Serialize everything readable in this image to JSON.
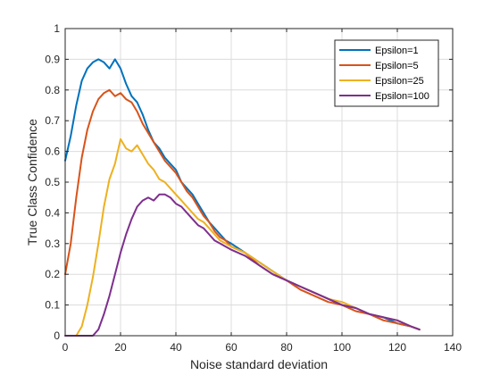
{
  "chart_data": {
    "type": "line",
    "title": "",
    "xlabel": "Noise standard deviation",
    "ylabel": "True Class Confidence",
    "xlim": [
      0,
      140
    ],
    "ylim": [
      0,
      1
    ],
    "xticks": [
      "0",
      "20",
      "40",
      "60",
      "80",
      "100",
      "120",
      "140"
    ],
    "yticks": [
      "0",
      "0.1",
      "0.2",
      "0.3",
      "0.4",
      "0.5",
      "0.6",
      "0.7",
      "0.8",
      "0.9",
      "1"
    ],
    "grid": true,
    "legend_position": "top-right",
    "series": [
      {
        "name": "Epsilon=1",
        "color": "#0072BD",
        "x": [
          0,
          2,
          4,
          6,
          8,
          10,
          12,
          14,
          16,
          18,
          20,
          22,
          24,
          26,
          28,
          30,
          32,
          34,
          36,
          38,
          40,
          42,
          44,
          46,
          48,
          50,
          52,
          54,
          56,
          58,
          60,
          65,
          70,
          75,
          80,
          85,
          90,
          95,
          100,
          105,
          110,
          115,
          120,
          125,
          128
        ],
        "y": [
          0.57,
          0.65,
          0.75,
          0.83,
          0.87,
          0.89,
          0.9,
          0.89,
          0.87,
          0.9,
          0.87,
          0.82,
          0.78,
          0.76,
          0.72,
          0.67,
          0.63,
          0.61,
          0.58,
          0.56,
          0.54,
          0.5,
          0.48,
          0.46,
          0.43,
          0.4,
          0.37,
          0.35,
          0.33,
          0.31,
          0.3,
          0.27,
          0.24,
          0.21,
          0.18,
          0.16,
          0.14,
          0.12,
          0.1,
          0.09,
          0.07,
          0.06,
          0.04,
          0.03,
          0.02
        ]
      },
      {
        "name": "Epsilon=5",
        "color": "#D95319",
        "x": [
          0,
          2,
          4,
          6,
          8,
          10,
          12,
          14,
          16,
          18,
          20,
          22,
          24,
          26,
          28,
          30,
          32,
          34,
          36,
          38,
          40,
          42,
          44,
          46,
          48,
          50,
          52,
          54,
          56,
          58,
          60,
          65,
          70,
          75,
          80,
          85,
          90,
          95,
          100,
          105,
          110,
          115,
          120,
          125,
          128
        ],
        "y": [
          0.2,
          0.3,
          0.45,
          0.58,
          0.67,
          0.73,
          0.77,
          0.79,
          0.8,
          0.78,
          0.79,
          0.77,
          0.76,
          0.73,
          0.69,
          0.66,
          0.63,
          0.6,
          0.57,
          0.55,
          0.53,
          0.5,
          0.47,
          0.45,
          0.42,
          0.39,
          0.37,
          0.34,
          0.32,
          0.31,
          0.29,
          0.27,
          0.23,
          0.2,
          0.18,
          0.15,
          0.13,
          0.11,
          0.1,
          0.08,
          0.07,
          0.05,
          0.04,
          0.03,
          0.02
        ]
      },
      {
        "name": "Epsilon=25",
        "color": "#EDB120",
        "x": [
          0,
          2,
          4,
          6,
          8,
          10,
          12,
          14,
          16,
          18,
          20,
          22,
          24,
          26,
          28,
          30,
          32,
          34,
          36,
          38,
          40,
          42,
          44,
          46,
          48,
          50,
          52,
          54,
          56,
          58,
          60,
          65,
          70,
          75,
          80,
          85,
          90,
          95,
          100,
          105,
          110,
          115,
          120,
          125,
          128
        ],
        "y": [
          0.0,
          0.0,
          0.0,
          0.03,
          0.1,
          0.19,
          0.3,
          0.42,
          0.51,
          0.56,
          0.64,
          0.61,
          0.6,
          0.62,
          0.59,
          0.56,
          0.54,
          0.51,
          0.5,
          0.48,
          0.46,
          0.44,
          0.42,
          0.4,
          0.38,
          0.37,
          0.35,
          0.33,
          0.31,
          0.3,
          0.29,
          0.27,
          0.24,
          0.21,
          0.18,
          0.16,
          0.14,
          0.12,
          0.11,
          0.09,
          0.07,
          0.06,
          0.05,
          0.03,
          0.02
        ]
      },
      {
        "name": "Epsilon=100",
        "color": "#7E2F8E",
        "x": [
          0,
          2,
          4,
          6,
          8,
          10,
          12,
          14,
          16,
          18,
          20,
          22,
          24,
          26,
          28,
          30,
          32,
          34,
          36,
          38,
          40,
          42,
          44,
          46,
          48,
          50,
          52,
          54,
          56,
          58,
          60,
          65,
          70,
          75,
          80,
          85,
          90,
          95,
          100,
          105,
          110,
          115,
          120,
          125,
          128
        ],
        "y": [
          0.0,
          0.0,
          0.0,
          0.0,
          0.0,
          0.0,
          0.02,
          0.07,
          0.13,
          0.2,
          0.27,
          0.33,
          0.38,
          0.42,
          0.44,
          0.45,
          0.44,
          0.46,
          0.46,
          0.45,
          0.43,
          0.42,
          0.4,
          0.38,
          0.36,
          0.35,
          0.33,
          0.31,
          0.3,
          0.29,
          0.28,
          0.26,
          0.23,
          0.2,
          0.18,
          0.16,
          0.14,
          0.12,
          0.1,
          0.09,
          0.07,
          0.06,
          0.05,
          0.03,
          0.02
        ]
      }
    ]
  }
}
